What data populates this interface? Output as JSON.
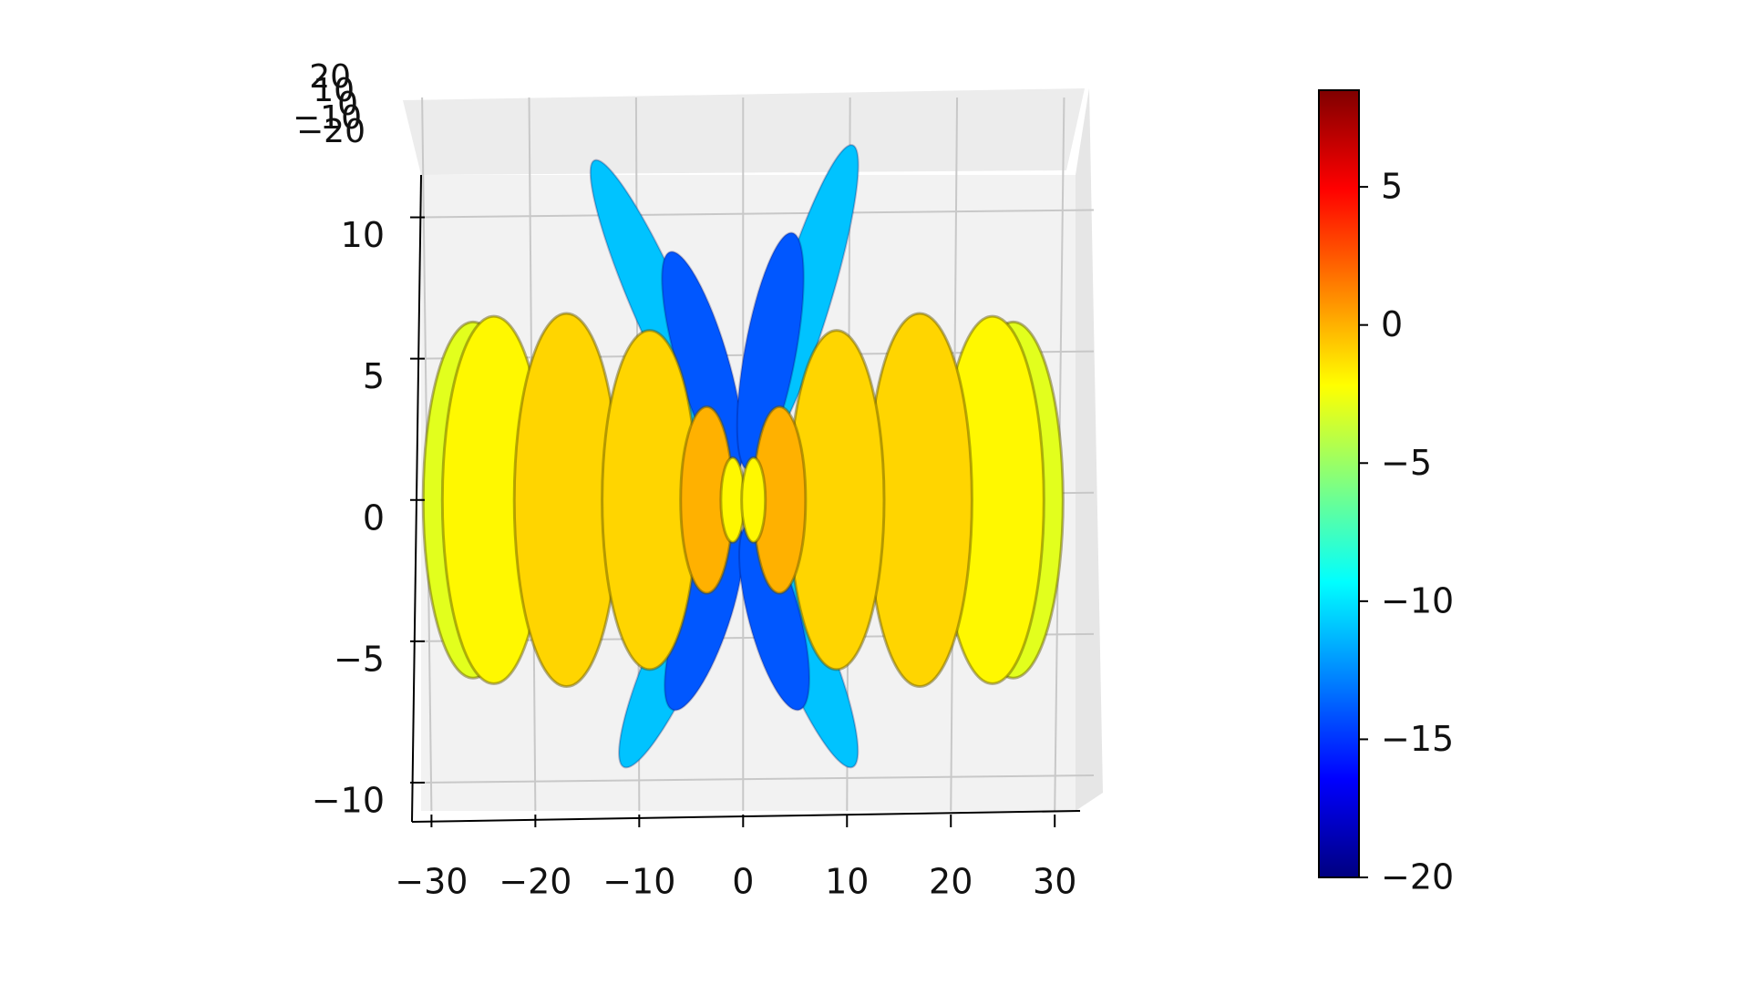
{
  "chart_data": {
    "type": "surface3d",
    "xlim": [
      -31,
      32
    ],
    "xticks": [
      {
        "value": -30,
        "label": "−30"
      },
      {
        "value": -20,
        "label": "−20"
      },
      {
        "value": -10,
        "label": "−10"
      },
      0,
      10,
      20,
      30
    ],
    "ylim": [
      -11,
      11.5
    ],
    "yticks": [
      {
        "value": -10,
        "label": "−10"
      },
      {
        "value": -5,
        "label": "−5"
      },
      0,
      5,
      10
    ],
    "zticks": [
      20,
      10,
      0,
      {
        "value": -10,
        "label": "−10"
      },
      {
        "value": -20,
        "label": "−20"
      }
    ],
    "grid": true,
    "colormap": "jet",
    "clim": [
      -20,
      8.5
    ],
    "cticks": [
      {
        "value": -20,
        "label": "−20"
      },
      {
        "value": -15,
        "label": "−15"
      },
      {
        "value": -10,
        "label": "−10"
      },
      {
        "value": -5,
        "label": "−5"
      },
      0,
      5
    ],
    "lobes": {
      "x": [
        -26,
        26,
        -24,
        24,
        -17,
        17,
        -9,
        9,
        -3.5,
        3.5,
        -1,
        1
      ],
      "radius": [
        6.3,
        6.3,
        6.5,
        6.5,
        6.6,
        6.6,
        6,
        6,
        3.3,
        3.3,
        1.5,
        1.5
      ],
      "values": [
        -3,
        -3,
        -2,
        -2,
        -1,
        -1,
        -1,
        -1,
        0,
        0,
        -2,
        -2
      ]
    },
    "side_lobes": {
      "x": [
        -10.6,
        -5.2,
        7.8,
        3.5,
        -8.5,
        -5,
        7.8,
        4
      ],
      "y": [
        8.9,
        6.5,
        9.3,
        7,
        -7,
        -5.5,
        -7,
        -5.5
      ],
      "values": [
        -11,
        -14,
        -11,
        -14,
        -11,
        -14,
        -11,
        -14
      ]
    }
  }
}
